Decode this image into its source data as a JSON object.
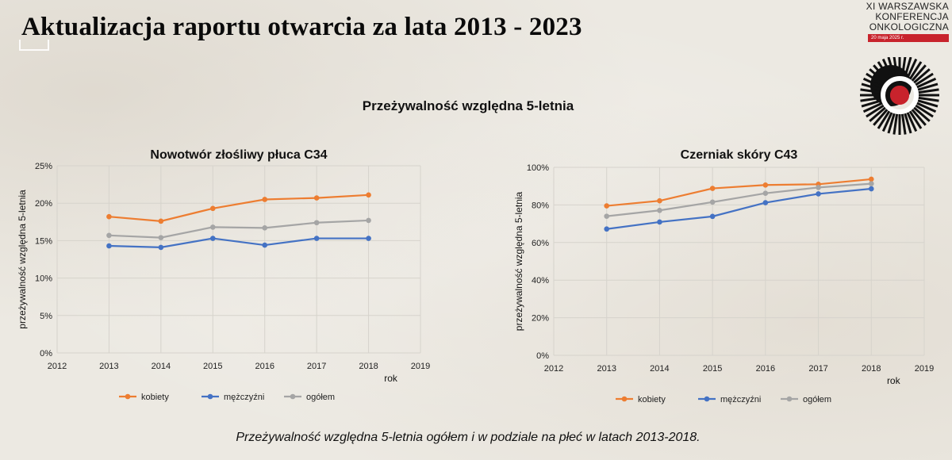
{
  "page": {
    "title": "Aktualizacja raportu otwarcia za lata 2013 - 2023",
    "subtitle": "Przeżywalność względna 5-letnia",
    "caption": "Przeżywalność względna 5-letnia ogółem i w podziale na płeć w latach 2013-2018."
  },
  "logo": {
    "line1": "XI WARSZAWSKA",
    "line2": "KONFERENCJA",
    "line3": "ONKOLOGICZNA",
    "date": "20 maja 2025 r."
  },
  "colors": {
    "kobiety": "#ed7d31",
    "mezczyzni": "#4472c4",
    "ogolem": "#a5a5a5",
    "logo_red": "#c8232c"
  },
  "chart_data": [
    {
      "type": "line",
      "title": "Nowotwór złośliwy płuca C34",
      "xlabel": "rok",
      "ylabel": "przeżywalność względna 5-letnia",
      "x_ticks": [
        2012,
        2013,
        2014,
        2015,
        2016,
        2017,
        2018,
        2019
      ],
      "y_ticks": [
        "0%",
        "5%",
        "10%",
        "15%",
        "20%",
        "25%"
      ],
      "xlim": [
        2012,
        2019
      ],
      "ylim": [
        0,
        25
      ],
      "grid": true,
      "legend": "bottom",
      "x": [
        2013,
        2014,
        2015,
        2016,
        2017,
        2018
      ],
      "series": [
        {
          "name": "kobiety",
          "color": "#ed7d31",
          "values": [
            18.2,
            17.6,
            19.3,
            20.5,
            20.7,
            21.1
          ]
        },
        {
          "name": "mężczyźni",
          "color": "#4472c4",
          "values": [
            14.3,
            14.1,
            15.3,
            14.4,
            15.3,
            15.3
          ]
        },
        {
          "name": "ogółem",
          "color": "#a5a5a5",
          "values": [
            15.7,
            15.4,
            16.8,
            16.7,
            17.4,
            17.7
          ]
        }
      ]
    },
    {
      "type": "line",
      "title": "Czerniak skóry C43",
      "xlabel": "rok",
      "ylabel": "przeżywalność względna 5-letnia",
      "x_ticks": [
        2012,
        2013,
        2014,
        2015,
        2016,
        2017,
        2018,
        2019
      ],
      "y_ticks": [
        "0%",
        "20%",
        "40%",
        "60%",
        "80%",
        "100%"
      ],
      "xlim": [
        2012,
        2019
      ],
      "ylim": [
        0,
        100
      ],
      "grid": true,
      "legend": "bottom",
      "x": [
        2013,
        2014,
        2015,
        2016,
        2017,
        2018
      ],
      "series": [
        {
          "name": "kobiety",
          "color": "#ed7d31",
          "values": [
            79.5,
            82.2,
            88.8,
            90.6,
            91.0,
            93.7
          ]
        },
        {
          "name": "mężczyźni",
          "color": "#4472c4",
          "values": [
            67.2,
            70.9,
            73.9,
            81.2,
            85.9,
            88.6
          ]
        },
        {
          "name": "ogółem",
          "color": "#a5a5a5",
          "values": [
            74.0,
            77.1,
            81.5,
            86.2,
            89.3,
            91.3
          ]
        }
      ]
    }
  ]
}
